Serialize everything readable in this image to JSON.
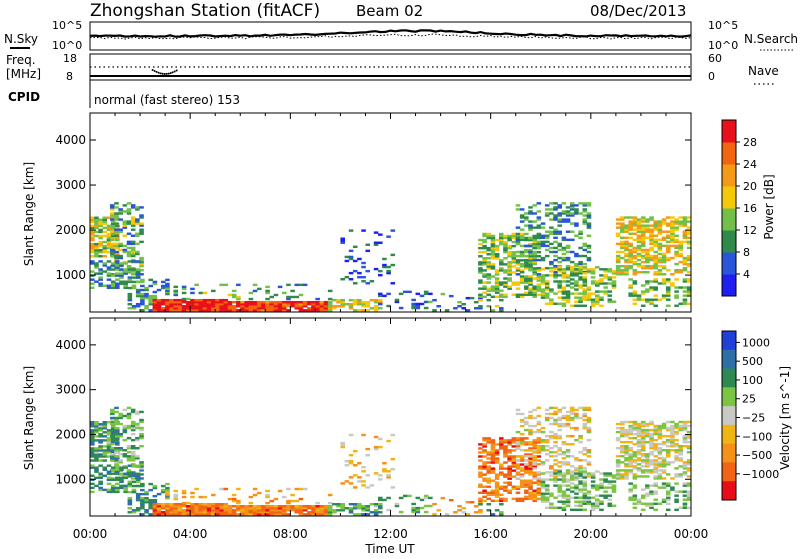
{
  "header": {
    "title": "Zhongshan Station (fitACF)",
    "beam": "Beam 02",
    "date": "08/Dec/2013"
  },
  "summary": {
    "nsky_label": "N.Sky",
    "nsky_ticks": [
      "10^5",
      "10^0"
    ],
    "nsearch_label": "N.Search",
    "nsearch_ticks": [
      "10^5",
      "10^0"
    ],
    "freq_label": "Freq.",
    "freq_unit": "[MHz]",
    "freq_ticks": [
      "18",
      "8"
    ],
    "nave_label": "Nave",
    "nave_ticks": [
      "60",
      "0"
    ],
    "cpid_label": "CPID",
    "cpid_value": "normal (fast stereo) 153"
  },
  "colors": {
    "power": [
      "#1f1ff0",
      "#2a55d8",
      "#2f8a4c",
      "#72c04a",
      "#f5c80a",
      "#f59a18",
      "#f26410",
      "#e8101a"
    ],
    "velocity": [
      "#2040d8",
      "#2e6fa8",
      "#2e8a52",
      "#7cc444",
      "#c8c8c4",
      "#f0b414",
      "#f59018",
      "#f06414",
      "#e80c18"
    ]
  },
  "chart_data": [
    {
      "type": "heatmap",
      "ylabel": "Slant Range [km]",
      "yticks": [
        "1000",
        "2000",
        "3000",
        "4000"
      ],
      "yticks_values": [
        1000,
        2000,
        3000,
        4000
      ],
      "ylim": [
        180,
        4600
      ],
      "xticks": [
        "00:00",
        "04:00",
        "08:00",
        "12:00",
        "16:00",
        "20:00",
        "00:00"
      ],
      "xticks_values": [
        0,
        4,
        8,
        12,
        16,
        20,
        24
      ],
      "xlim": [
        0,
        24
      ],
      "colorbar_label": "Power [dB]",
      "colorbar_ticks": [
        "4",
        "8",
        "12",
        "16",
        "20",
        "24",
        "28"
      ],
      "colorbar_values": [
        4,
        8,
        12,
        16,
        20,
        24,
        28
      ],
      "colorbar_range": [
        0,
        32
      ]
    },
    {
      "type": "heatmap",
      "ylabel": "Slant Range [km]",
      "yticks": [
        "1000",
        "2000",
        "3000",
        "4000"
      ],
      "yticks_values": [
        1000,
        2000,
        3000,
        4000
      ],
      "ylim": [
        180,
        4600
      ],
      "xticks": [
        "00:00",
        "04:00",
        "08:00",
        "12:00",
        "16:00",
        "20:00",
        "00:00"
      ],
      "xticks_values": [
        0,
        4,
        8,
        12,
        16,
        20,
        24
      ],
      "xlim": [
        0,
        24
      ],
      "xlabel": "Time UT",
      "colorbar_label": "Velocity [m s^-1]",
      "colorbar_ticks": [
        "1000",
        "500",
        "100",
        "25",
        "−25",
        "−100",
        "−500",
        "−1000"
      ]
    }
  ]
}
